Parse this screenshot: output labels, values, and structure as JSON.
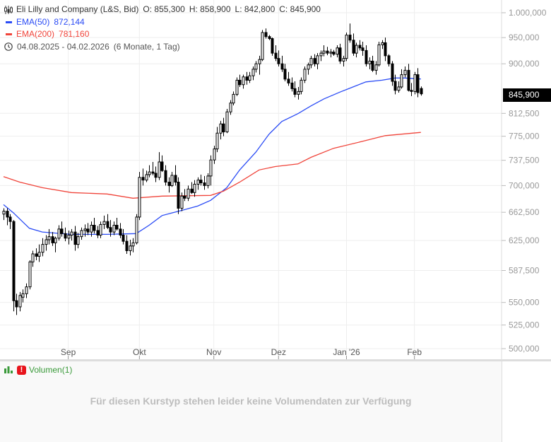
{
  "header": {
    "title": "Eli Lilly and Company (L&S, Bid)",
    "ohlc": {
      "open": "O: 855,300",
      "high": "H: 858,900",
      "low": "L: 842,800",
      "close": "C: 845,900"
    },
    "ema50": {
      "label": "EMA(50)",
      "value": "872,144"
    },
    "ema200": {
      "label": "EMA(200)",
      "value": "781,160"
    },
    "range": "04.08.2025 - 04.02.2026",
    "range_desc": "(6 Monate, 1 Tag)",
    "icons": {
      "chart": "candlestick-icon",
      "time": "clock-icon"
    }
  },
  "current_price_label": "845,900",
  "volume_pane": {
    "label": "Volumen(1)",
    "icons": {
      "chart": "bar-chart-icon",
      "warning": "exclamation-icon"
    },
    "message": "Für diesen Kurstyp stehen leider keine Volumendaten zur Verfügung"
  },
  "colors": {
    "ema50": "#2b4cf5",
    "ema200": "#f0443a",
    "volume": "#3a9a3a",
    "up_body": "#ffffff",
    "down_body": "#000000"
  },
  "chart_data": {
    "type": "candlestick",
    "y_scale": "log",
    "ylim": [
      490,
      1030
    ],
    "grid": true,
    "y_ticks": [
      {
        "value": 1000,
        "label": "1.000,000"
      },
      {
        "value": 950,
        "label": "950,000"
      },
      {
        "value": 900,
        "label": "900,000"
      },
      {
        "value": 812.5,
        "label": "812,500"
      },
      {
        "value": 775,
        "label": "775,000"
      },
      {
        "value": 737.5,
        "label": "737,500"
      },
      {
        "value": 700,
        "label": "700,000"
      },
      {
        "value": 662.5,
        "label": "662,500"
      },
      {
        "value": 625,
        "label": "625,000"
      },
      {
        "value": 587.5,
        "label": "587,500"
      },
      {
        "value": 550,
        "label": "550,000"
      },
      {
        "value": 525,
        "label": "525,000"
      },
      {
        "value": 500,
        "label": "500,000"
      }
    ],
    "x_ticks": [
      {
        "date": "01.09.2025",
        "label": "Sep"
      },
      {
        "date": "01.10.2025",
        "label": "Okt"
      },
      {
        "date": "03.11.2025",
        "label": "Nov"
      },
      {
        "date": "01.12.2025",
        "label": "Dez"
      },
      {
        "date": "02.01.2026",
        "label": "Jan '26"
      },
      {
        "date": "02.02.2026",
        "label": "Feb"
      }
    ],
    "dates": [
      "04.08.2025",
      "05.08.2025",
      "06.08.2025",
      "07.08.2025",
      "08.08.2025",
      "11.08.2025",
      "12.08.2025",
      "13.08.2025",
      "14.08.2025",
      "15.08.2025",
      "18.08.2025",
      "19.08.2025",
      "20.08.2025",
      "21.08.2025",
      "22.08.2025",
      "25.08.2025",
      "26.08.2025",
      "27.08.2025",
      "28.08.2025",
      "29.08.2025",
      "01.09.2025",
      "02.09.2025",
      "03.09.2025",
      "04.09.2025",
      "05.09.2025",
      "08.09.2025",
      "09.09.2025",
      "10.09.2025",
      "11.09.2025",
      "12.09.2025",
      "15.09.2025",
      "16.09.2025",
      "17.09.2025",
      "18.09.2025",
      "19.09.2025",
      "22.09.2025",
      "23.09.2025",
      "24.09.2025",
      "25.09.2025",
      "26.09.2025",
      "29.09.2025",
      "30.09.2025",
      "01.10.2025",
      "02.10.2025",
      "03.10.2025",
      "06.10.2025",
      "07.10.2025",
      "08.10.2025",
      "09.10.2025",
      "10.10.2025",
      "13.10.2025",
      "14.10.2025",
      "15.10.2025",
      "16.10.2025",
      "17.10.2025",
      "20.10.2025",
      "21.10.2025",
      "22.10.2025",
      "23.10.2025",
      "24.10.2025",
      "27.10.2025",
      "28.10.2025",
      "29.10.2025",
      "30.10.2025",
      "31.10.2025",
      "03.11.2025",
      "04.11.2025",
      "05.11.2025",
      "06.11.2025",
      "07.11.2025",
      "10.11.2025",
      "11.11.2025",
      "12.11.2025",
      "13.11.2025",
      "14.11.2025",
      "17.11.2025",
      "18.11.2025",
      "19.11.2025",
      "20.11.2025",
      "21.11.2025",
      "24.11.2025",
      "25.11.2025",
      "26.11.2025",
      "27.11.2025",
      "28.11.2025",
      "01.12.2025",
      "02.12.2025",
      "03.12.2025",
      "04.12.2025",
      "05.12.2025",
      "08.12.2025",
      "09.12.2025",
      "10.12.2025",
      "11.12.2025",
      "12.12.2025",
      "15.12.2025",
      "16.12.2025",
      "17.12.2025",
      "18.12.2025",
      "19.12.2025",
      "22.12.2025",
      "23.12.2025",
      "24.12.2025",
      "29.12.2025",
      "30.12.2025",
      "31.12.2025",
      "02.01.2026",
      "05.01.2026",
      "06.01.2026",
      "07.01.2026",
      "08.01.2026",
      "09.01.2026",
      "12.01.2026",
      "13.01.2026",
      "14.01.2026",
      "15.01.2026",
      "16.01.2026",
      "19.01.2026",
      "20.01.2026",
      "21.01.2026",
      "22.01.2026",
      "23.01.2026",
      "26.01.2026",
      "27.01.2026",
      "28.01.2026",
      "29.01.2026",
      "30.01.2026",
      "02.02.2026",
      "03.02.2026",
      "04.02.2026"
    ],
    "ohlc": [
      [
        660,
        668,
        652,
        664
      ],
      [
        664,
        668,
        645,
        656
      ],
      [
        656,
        660,
        640,
        650
      ],
      [
        650,
        652,
        540,
        552
      ],
      [
        552,
        560,
        536,
        545
      ],
      [
        545,
        562,
        540,
        558
      ],
      [
        556,
        565,
        550,
        560
      ],
      [
        560,
        572,
        555,
        568
      ],
      [
        568,
        600,
        565,
        598
      ],
      [
        598,
        612,
        592,
        608
      ],
      [
        608,
        615,
        600,
        605
      ],
      [
        605,
        620,
        598,
        610
      ],
      [
        610,
        628,
        605,
        620
      ],
      [
        620,
        632,
        612,
        626
      ],
      [
        626,
        640,
        620,
        630
      ],
      [
        630,
        636,
        618,
        622
      ],
      [
        622,
        630,
        610,
        628
      ],
      [
        628,
        645,
        625,
        640
      ],
      [
        640,
        650,
        630,
        634
      ],
      [
        634,
        642,
        624,
        628
      ],
      [
        628,
        638,
        620,
        632
      ],
      [
        632,
        640,
        625,
        636
      ],
      [
        636,
        644,
        612,
        620
      ],
      [
        620,
        635,
        615,
        630
      ],
      [
        630,
        642,
        626,
        638
      ],
      [
        638,
        646,
        630,
        640
      ],
      [
        640,
        648,
        632,
        636
      ],
      [
        636,
        650,
        630,
        645
      ],
      [
        645,
        655,
        634,
        638
      ],
      [
        638,
        644,
        628,
        632
      ],
      [
        632,
        650,
        628,
        646
      ],
      [
        646,
        658,
        640,
        650
      ],
      [
        650,
        660,
        640,
        642
      ],
      [
        642,
        652,
        630,
        636
      ],
      [
        636,
        650,
        632,
        645
      ],
      [
        645,
        655,
        638,
        640
      ],
      [
        640,
        648,
        628,
        632
      ],
      [
        632,
        640,
        620,
        624
      ],
      [
        624,
        632,
        608,
        612
      ],
      [
        612,
        626,
        606,
        618
      ],
      [
        618,
        628,
        610,
        622
      ],
      [
        622,
        660,
        620,
        656
      ],
      [
        656,
        720,
        652,
        712
      ],
      [
        712,
        725,
        700,
        708
      ],
      [
        708,
        722,
        705,
        716
      ],
      [
        716,
        730,
        712,
        720
      ],
      [
        720,
        735,
        715,
        718
      ],
      [
        718,
        728,
        705,
        712
      ],
      [
        712,
        750,
        708,
        735
      ],
      [
        735,
        745,
        720,
        722
      ],
      [
        722,
        730,
        700,
        705
      ],
      [
        705,
        712,
        690,
        700
      ],
      [
        700,
        720,
        698,
        715
      ],
      [
        715,
        730,
        700,
        705
      ],
      [
        705,
        712,
        660,
        668
      ],
      [
        668,
        690,
        664,
        685
      ],
      [
        685,
        695,
        678,
        682
      ],
      [
        682,
        700,
        678,
        695
      ],
      [
        695,
        705,
        688,
        690
      ],
      [
        690,
        708,
        684,
        702
      ],
      [
        702,
        712,
        694,
        708
      ],
      [
        708,
        716,
        700,
        704
      ],
      [
        704,
        714,
        694,
        700
      ],
      [
        700,
        718,
        696,
        714
      ],
      [
        714,
        745,
        700,
        738
      ],
      [
        738,
        760,
        732,
        755
      ],
      [
        755,
        790,
        750,
        780
      ],
      [
        780,
        800,
        770,
        795
      ],
      [
        795,
        805,
        775,
        782
      ],
      [
        782,
        820,
        780,
        815
      ],
      [
        815,
        835,
        810,
        830
      ],
      [
        830,
        850,
        826,
        845
      ],
      [
        845,
        875,
        842,
        870
      ],
      [
        870,
        880,
        858,
        862
      ],
      [
        862,
        880,
        855,
        876
      ],
      [
        876,
        885,
        862,
        870
      ],
      [
        870,
        885,
        865,
        878
      ],
      [
        878,
        895,
        870,
        890
      ],
      [
        890,
        905,
        884,
        900
      ],
      [
        900,
        915,
        880,
        908
      ],
      [
        908,
        965,
        905,
        960
      ],
      [
        960,
        968,
        948,
        952
      ],
      [
        952,
        955,
        945,
        948
      ],
      [
        948,
        950,
        915,
        920
      ],
      [
        920,
        935,
        905,
        910
      ],
      [
        910,
        925,
        895,
        900
      ],
      [
        900,
        915,
        885,
        890
      ],
      [
        890,
        900,
        868,
        872
      ],
      [
        872,
        885,
        860,
        865
      ],
      [
        865,
        875,
        850,
        855
      ],
      [
        855,
        868,
        840,
        845
      ],
      [
        845,
        858,
        836,
        850
      ],
      [
        850,
        875,
        845,
        870
      ],
      [
        870,
        895,
        865,
        890
      ],
      [
        890,
        902,
        880,
        898
      ],
      [
        898,
        915,
        892,
        910
      ],
      [
        910,
        918,
        895,
        900
      ],
      [
        900,
        920,
        890,
        915
      ],
      [
        915,
        925,
        905,
        920
      ],
      [
        920,
        935,
        914,
        924
      ],
      [
        924,
        932,
        916,
        920
      ],
      [
        920,
        928,
        912,
        922
      ],
      [
        922,
        926,
        915,
        918
      ],
      [
        918,
        935,
        912,
        930
      ],
      [
        930,
        938,
        900,
        905
      ],
      [
        905,
        915,
        895,
        910
      ],
      [
        910,
        960,
        905,
        955
      ],
      [
        955,
        978,
        940,
        945
      ],
      [
        945,
        958,
        915,
        920
      ],
      [
        920,
        940,
        912,
        935
      ],
      [
        935,
        945,
        925,
        930
      ],
      [
        930,
        942,
        915,
        925
      ],
      [
        925,
        935,
        895,
        900
      ],
      [
        900,
        912,
        890,
        905
      ],
      [
        905,
        915,
        885,
        888
      ],
      [
        888,
        905,
        880,
        898
      ],
      [
        898,
        942,
        895,
        936
      ],
      [
        936,
        945,
        928,
        940
      ],
      [
        940,
        950,
        905,
        915
      ],
      [
        915,
        918,
        895,
        900
      ],
      [
        900,
        905,
        860,
        868
      ],
      [
        868,
        880,
        845,
        852
      ],
      [
        852,
        868,
        848,
        858
      ],
      [
        858,
        890,
        855,
        880
      ],
      [
        880,
        895,
        875,
        888
      ],
      [
        888,
        900,
        850,
        852
      ],
      [
        852,
        865,
        842,
        850
      ],
      [
        850,
        885,
        845,
        880
      ],
      [
        880,
        892,
        840,
        848
      ],
      [
        855.3,
        858.9,
        842.8,
        845.9
      ]
    ],
    "series": [
      {
        "name": "EMA(50)",
        "color": "#2b4cf5",
        "points": [
          [
            "04.08.2025",
            673
          ],
          [
            "07.08.2025",
            662
          ],
          [
            "14.08.2025",
            641
          ],
          [
            "20.08.2025",
            636
          ],
          [
            "02.09.2025",
            633
          ],
          [
            "17.09.2025",
            633
          ],
          [
            "30.09.2025",
            634
          ],
          [
            "06.10.2025",
            645
          ],
          [
            "10.10.2025",
            658
          ],
          [
            "20.10.2025",
            665
          ],
          [
            "27.10.2025",
            671
          ],
          [
            "31.10.2025",
            679
          ],
          [
            "07.11.2025",
            697
          ],
          [
            "13.11.2025",
            723
          ],
          [
            "20.11.2025",
            750
          ],
          [
            "26.11.2025",
            778
          ],
          [
            "02.12.2025",
            799
          ],
          [
            "09.12.2025",
            812
          ],
          [
            "15.12.2025",
            825
          ],
          [
            "19.12.2025",
            837
          ],
          [
            "30.12.2025",
            849
          ],
          [
            "06.01.2026",
            858
          ],
          [
            "12.01.2026",
            867
          ],
          [
            "19.01.2026",
            870
          ],
          [
            "23.01.2026",
            874
          ],
          [
            "28.01.2026",
            874
          ],
          [
            "04.02.2026",
            872.144
          ]
        ]
      },
      {
        "name": "EMA(200)",
        "color": "#f0443a",
        "points": [
          [
            "04.08.2025",
            713
          ],
          [
            "11.08.2025",
            705
          ],
          [
            "20.08.2025",
            697
          ],
          [
            "02.09.2025",
            690
          ],
          [
            "17.09.2025",
            688
          ],
          [
            "29.09.2025",
            682
          ],
          [
            "10.10.2025",
            685
          ],
          [
            "31.10.2025",
            686
          ],
          [
            "06.11.2025",
            692
          ],
          [
            "13.11.2025",
            705
          ],
          [
            "21.11.2025",
            723
          ],
          [
            "28.11.2025",
            728
          ],
          [
            "09.12.2025",
            732
          ],
          [
            "15.12.2025",
            742
          ],
          [
            "24.12.2025",
            756
          ],
          [
            "09.01.2026",
            767
          ],
          [
            "20.01.2026",
            776
          ],
          [
            "04.02.2026",
            781.16
          ]
        ]
      }
    ]
  }
}
